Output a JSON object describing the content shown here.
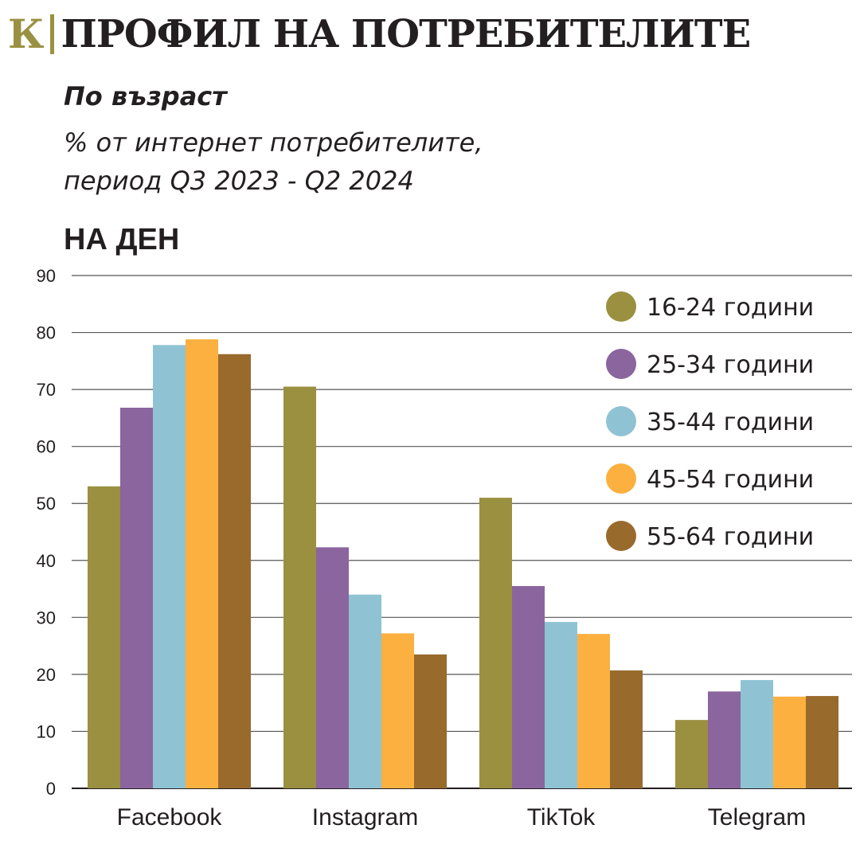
{
  "header": {
    "brand": "К",
    "title": "ПРОФИЛ НА ПОТРЕБИТЕЛИТЕ",
    "subtitle": "По възраст",
    "desc_line1": "% от интернет потребителите,",
    "desc_line2": "период Q3 2023 - Q2 2024",
    "period": "НА ДЕН"
  },
  "colors": {
    "brand": "#9a9042",
    "series": [
      "#9a9040",
      "#8a659e",
      "#8fc3d4",
      "#fbb040",
      "#986a2c"
    ]
  },
  "chart_data": {
    "type": "bar",
    "categories": [
      "Facebook",
      "Instagram",
      "TikTok",
      "Telegram"
    ],
    "series": [
      {
        "name": "16-24 години",
        "values": [
          53,
          70.5,
          51,
          12
        ]
      },
      {
        "name": "25-34 години",
        "values": [
          66.8,
          42.3,
          35.5,
          17
        ]
      },
      {
        "name": "35-44 години",
        "values": [
          77.8,
          34,
          29.2,
          19
        ]
      },
      {
        "name": "45-54 години",
        "values": [
          78.8,
          27.2,
          27.1,
          16.1
        ]
      },
      {
        "name": "55-64 години",
        "values": [
          76.2,
          23.5,
          20.7,
          16.2
        ]
      }
    ],
    "ylim": [
      0,
      90
    ],
    "yticks": [
      0,
      10,
      20,
      30,
      40,
      50,
      60,
      70,
      80,
      90
    ],
    "grid": true,
    "legend": "top-right"
  }
}
